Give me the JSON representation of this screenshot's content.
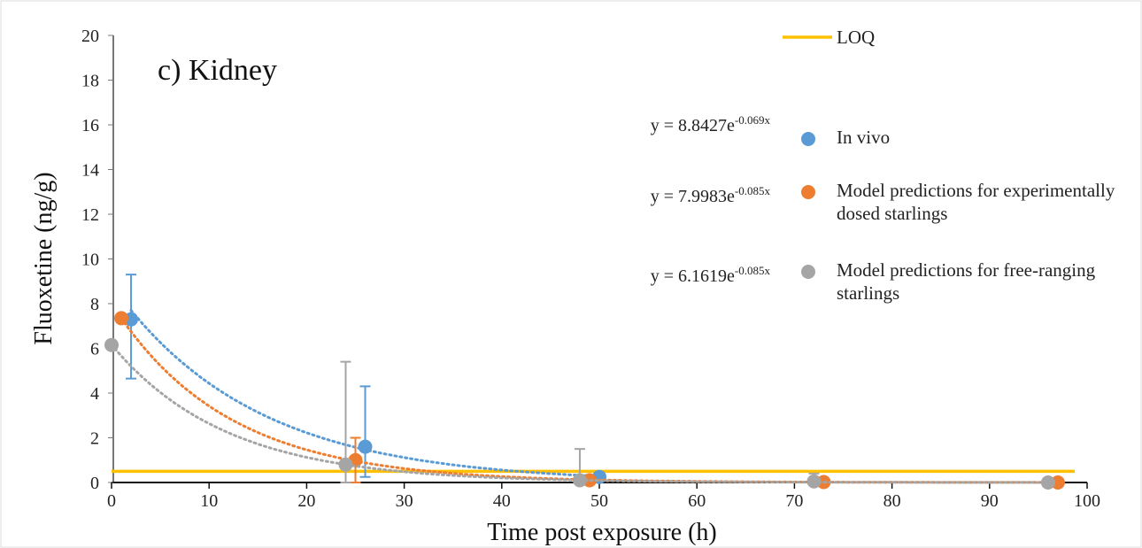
{
  "chart_data": {
    "type": "scatter",
    "title": "c) Kidney",
    "x_label": "Time post exposure (h)",
    "y_label": "Fluoxetine (ng/g)",
    "xlim": [
      0,
      100
    ],
    "xticks": [
      0,
      10,
      20,
      30,
      40,
      50,
      60,
      70,
      80,
      90,
      100
    ],
    "ylim": [
      0,
      20
    ],
    "yticks": [
      0,
      2,
      4,
      6,
      8,
      10,
      12,
      14,
      16,
      18,
      20
    ],
    "grid": false,
    "reference_line": {
      "name": "LOQ",
      "value": 0.5,
      "color": "#ffc000"
    },
    "series": [
      {
        "name": "In vivo",
        "color": "#5b9bd5",
        "x": [
          2,
          26,
          50
        ],
        "values": [
          7.3,
          1.6,
          0.25
        ],
        "error_plus": [
          2.0,
          2.7,
          null
        ],
        "error_minus": [
          2.65,
          1.35,
          null
        ],
        "trendline": {
          "a": 8.8427,
          "b": -0.069,
          "equation": "y = 8.8427e",
          "exponent": "-0.069x"
        }
      },
      {
        "name": "Model predictions for experimentally dosed starlings",
        "color": "#ed7d31",
        "x": [
          1,
          25,
          49,
          73,
          97
        ],
        "values": [
          7.35,
          1.0,
          0.1,
          0.02,
          0.0
        ],
        "error_plus": [
          null,
          1.0,
          null,
          null,
          null
        ],
        "error_minus": [
          null,
          1.0,
          null,
          null,
          null
        ],
        "trendline": {
          "a": 7.9983,
          "b": -0.085,
          "equation": "y = 7.9983e",
          "exponent": "-0.085x"
        }
      },
      {
        "name": "Model predictions for free-ranging starlings",
        "color": "#a5a5a5",
        "x": [
          0,
          24,
          48,
          72,
          96
        ],
        "values": [
          6.15,
          0.8,
          0.1,
          0.05,
          0.0
        ],
        "error_plus": [
          null,
          4.6,
          1.4,
          0.35,
          null
        ],
        "error_minus": [
          null,
          0.8,
          0.1,
          0.05,
          null
        ],
        "trendline": {
          "a": 6.1619,
          "b": -0.085,
          "equation": "y = 6.1619e",
          "exponent": "-0.085x"
        }
      }
    ]
  }
}
